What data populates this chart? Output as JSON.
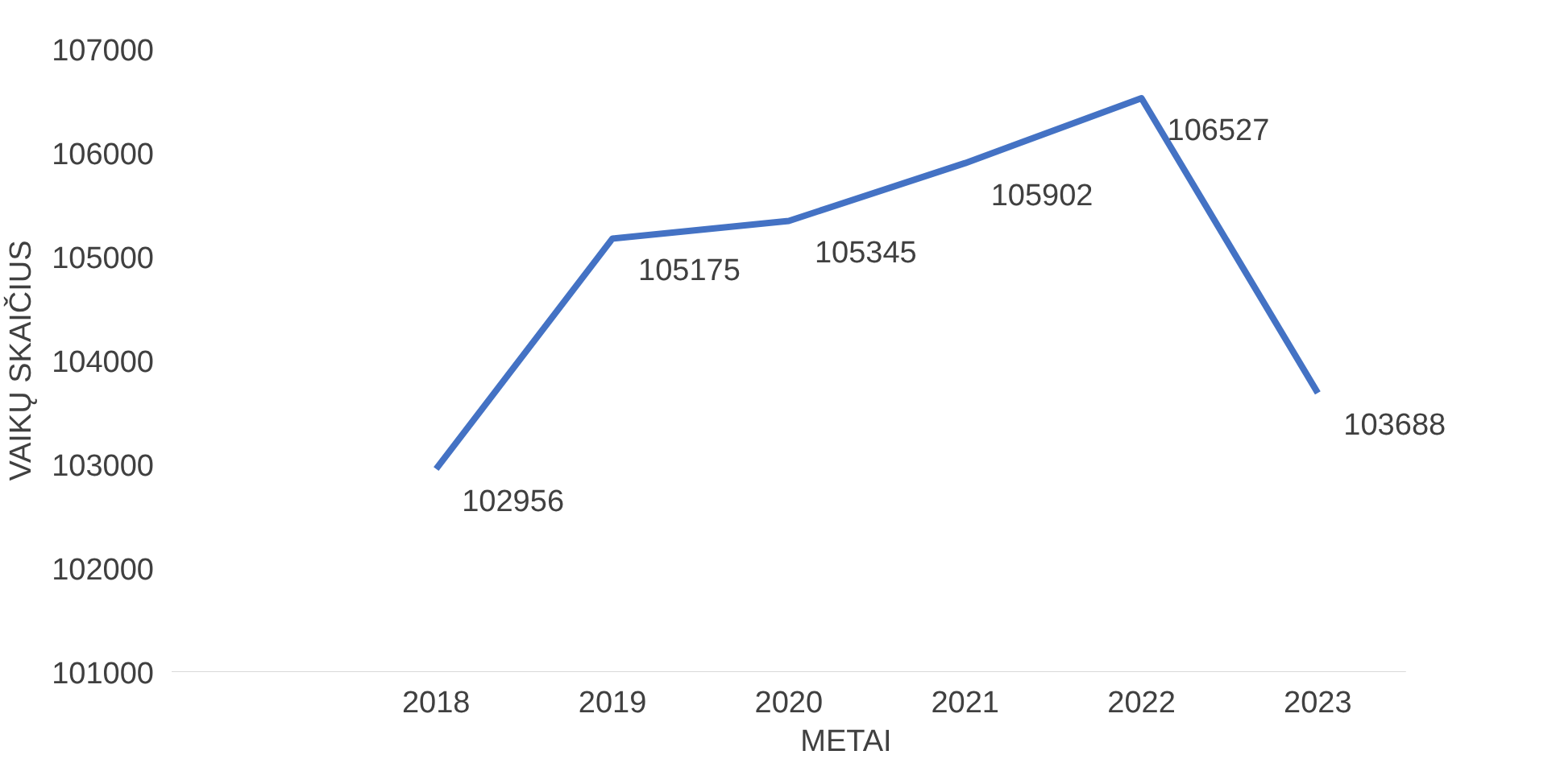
{
  "chart_data": {
    "type": "line",
    "xlabel": "METAI",
    "ylabel": "VAIKŲ SKAIČIUS",
    "categories": [
      null,
      "2018",
      "2019",
      "2020",
      "2021",
      "2022",
      "2023"
    ],
    "series": [
      {
        "color": "#4472c4",
        "values": [
          null,
          102956,
          105175,
          105345,
          105902,
          106527,
          103688
        ]
      }
    ],
    "ylim": [
      101000,
      107000
    ],
    "yticks": [
      101000,
      102000,
      103000,
      104000,
      105000,
      106000,
      107000
    ],
    "grid": false,
    "data_labels": true,
    "marker": "none",
    "line_style": "solid"
  }
}
